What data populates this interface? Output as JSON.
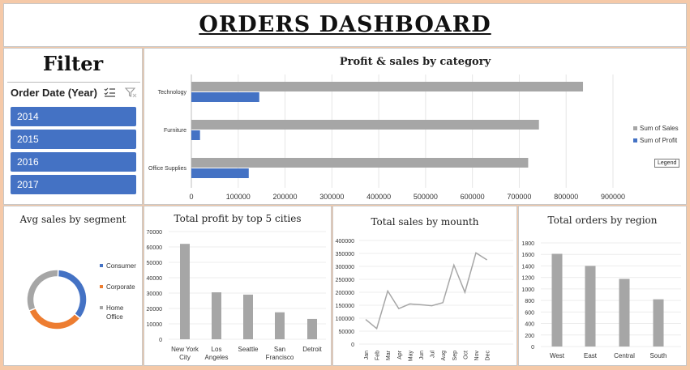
{
  "dashboard_title": "ORDERS DASHBOARD",
  "filter": {
    "title": "Filter",
    "slicer_label": "Order Date (Year)",
    "years": [
      "2014",
      "2015",
      "2016",
      "2017"
    ],
    "year_color": "#4472c4"
  },
  "colors": {
    "sales": "#a6a6a6",
    "profit": "#4472c4",
    "corporate": "#ed7d31"
  },
  "chart_data": [
    {
      "id": "category",
      "type": "bar",
      "orientation": "horizontal",
      "title": "Profit & sales by category",
      "categories": [
        "Technology",
        "Furniture",
        "Office Supplies"
      ],
      "series": [
        {
          "name": "Sum of Sales",
          "values": [
            836000,
            742000,
            719000
          ]
        },
        {
          "name": "Sum of Profit",
          "values": [
            145000,
            18500,
            122500
          ]
        }
      ],
      "xlim": [
        0,
        900000
      ],
      "xticks": [
        "0",
        "100000",
        "200000",
        "300000",
        "400000",
        "500000",
        "600000",
        "700000",
        "800000",
        "900000"
      ],
      "legend_position": "right",
      "tooltip": "Legend"
    },
    {
      "id": "segment",
      "type": "pie",
      "title": "Avg sales by segment",
      "labels": [
        "Consumer",
        "Corporate",
        "Home Office"
      ],
      "values": [
        35,
        33,
        32
      ],
      "colors": [
        "#4472c4",
        "#ed7d31",
        "#a6a6a6"
      ],
      "legend_position": "right"
    },
    {
      "id": "cities",
      "type": "bar",
      "title": "Total profit by top 5 cities",
      "categories": [
        "New York City",
        "Los Angeles",
        "Seattle",
        "San Francisco",
        "Detroit"
      ],
      "values": [
        62000,
        30500,
        29000,
        17500,
        13200
      ],
      "ylim": [
        0,
        70000
      ],
      "yticks": [
        "0",
        "10000",
        "20000",
        "30000",
        "40000",
        "50000",
        "60000",
        "70000"
      ]
    },
    {
      "id": "months",
      "type": "line",
      "title": "Total sales by mounth",
      "x": [
        "Jan",
        "Feb",
        "Mar",
        "Apr",
        "May",
        "Jun",
        "Jul",
        "Aug",
        "Sep",
        "Oct",
        "Nov",
        "Dec"
      ],
      "values": [
        95000,
        60000,
        205000,
        137000,
        155000,
        152000,
        148000,
        160000,
        305000,
        200000,
        352000,
        325000
      ],
      "ylim": [
        0,
        400000
      ],
      "yticks": [
        "0",
        "50000",
        "100000",
        "150000",
        "200000",
        "250000",
        "300000",
        "350000",
        "400000"
      ]
    },
    {
      "id": "regions",
      "type": "bar",
      "title": "Total orders by region",
      "categories": [
        "West",
        "East",
        "Central",
        "South"
      ],
      "values": [
        1610,
        1400,
        1175,
        820
      ],
      "ylim": [
        0,
        1800
      ],
      "yticks": [
        "0",
        "200",
        "400",
        "600",
        "800",
        "1000",
        "1200",
        "1400",
        "1600",
        "1800"
      ]
    }
  ]
}
